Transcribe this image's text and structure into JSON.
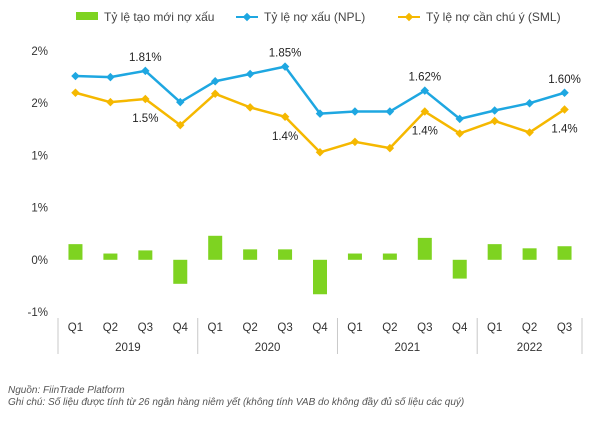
{
  "chart_data": {
    "type": "bar+line",
    "title": "",
    "legend": [
      {
        "name": "Tỷ lệ tạo mới nợ xấu",
        "kind": "bar",
        "color": "#7ed321"
      },
      {
        "name": "Tỷ lệ nợ xấu (NPL)",
        "kind": "line",
        "color": "#1ea7e1"
      },
      {
        "name": "Tỷ lệ nợ cần chú ý (SML)",
        "kind": "line",
        "color": "#f5b800"
      }
    ],
    "y_tick_labels": [
      "2%",
      "2%",
      "1%",
      "1%",
      "0%",
      "-1%"
    ],
    "y_tick_values": [
      2.0,
      1.5,
      1.0,
      0.5,
      0.0,
      -0.5
    ],
    "ylim": [
      -0.5,
      2.0
    ],
    "categories": [
      "Q1",
      "Q2",
      "Q3",
      "Q4",
      "Q1",
      "Q2",
      "Q3",
      "Q4",
      "Q1",
      "Q2",
      "Q3",
      "Q4",
      "Q1",
      "Q2",
      "Q3"
    ],
    "years": [
      {
        "label": "2019",
        "start": 0,
        "end": 3
      },
      {
        "label": "2020",
        "start": 4,
        "end": 7
      },
      {
        "label": "2021",
        "start": 8,
        "end": 11
      },
      {
        "label": "2022",
        "start": 12,
        "end": 14
      }
    ],
    "series": [
      {
        "name": "Tỷ lệ tạo mới nợ xấu",
        "type": "bar",
        "color": "#7ed321",
        "values": [
          0.15,
          0.06,
          0.09,
          -0.23,
          0.23,
          0.1,
          0.1,
          -0.33,
          0.06,
          0.06,
          0.21,
          -0.18,
          0.15,
          0.11,
          0.13
        ]
      },
      {
        "name": "Tỷ lệ nợ xấu (NPL)",
        "type": "line",
        "color": "#1ea7e1",
        "values": [
          1.76,
          1.75,
          1.81,
          1.51,
          1.71,
          1.78,
          1.85,
          1.4,
          1.42,
          1.42,
          1.62,
          1.35,
          1.43,
          1.5,
          1.6
        ]
      },
      {
        "name": "Tỷ lệ nợ cần chú ý (SML)",
        "type": "line",
        "color": "#f5b800",
        "values": [
          1.6,
          1.51,
          1.54,
          1.29,
          1.59,
          1.46,
          1.37,
          1.03,
          1.13,
          1.07,
          1.42,
          1.21,
          1.33,
          1.22,
          1.44
        ]
      }
    ],
    "annotations": [
      {
        "series": 1,
        "index": 2,
        "text": "1.81%"
      },
      {
        "series": 1,
        "index": 6,
        "text": "1.85%"
      },
      {
        "series": 1,
        "index": 10,
        "text": "1.62%"
      },
      {
        "series": 1,
        "index": 14,
        "text": "1.60%"
      },
      {
        "series": 2,
        "index": 2,
        "text": "1.5%"
      },
      {
        "series": 2,
        "index": 6,
        "text": "1.4%"
      },
      {
        "series": 2,
        "index": 10,
        "text": "1.4%"
      },
      {
        "series": 2,
        "index": 14,
        "text": "1.4%"
      }
    ]
  },
  "source": "Nguồn: FiinTrade Platform",
  "footnote": "Ghi chú: Số liệu được tính từ 26 ngân hàng niêm yết (không tính VAB do không đầy đủ số liệu các quý)"
}
